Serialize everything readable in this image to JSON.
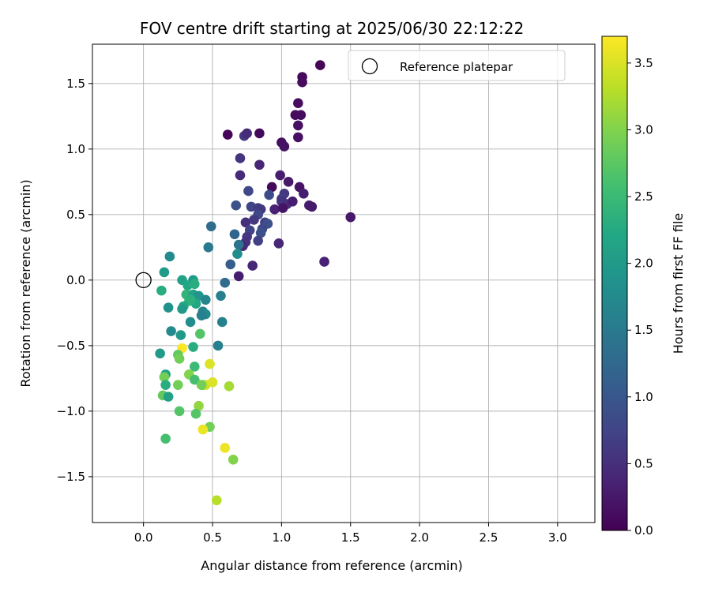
{
  "chart_data": {
    "type": "scatter",
    "title": "FOV centre drift starting at 2025/06/30 22:12:22",
    "xlabel": "Angular distance from reference (arcmin)",
    "ylabel": "Rotation from reference (arcmin)",
    "xlim": [
      -0.37,
      3.27
    ],
    "ylim": [
      -1.85,
      1.8
    ],
    "xticks": [
      0.0,
      0.5,
      1.0,
      1.5,
      2.0,
      2.5,
      3.0
    ],
    "yticks": [
      -1.5,
      -1.0,
      -0.5,
      0.0,
      0.5,
      1.0,
      1.5
    ],
    "grid": true,
    "legend": {
      "placement": "upper-right",
      "entries": [
        "Reference platepar"
      ]
    },
    "reference_point": {
      "label": "Reference platepar",
      "x": 0.0,
      "y": 0.0
    },
    "colorbar": {
      "label": "Hours from first FF file",
      "range": [
        0.0,
        3.7
      ],
      "ticks": [
        0.0,
        0.5,
        1.0,
        1.5,
        2.0,
        2.5,
        3.0,
        3.5
      ],
      "colormap": "viridis"
    },
    "points": [
      [
        1.28,
        1.64,
        0.05
      ],
      [
        1.15,
        1.55,
        0.1
      ],
      [
        1.15,
        1.51,
        0.12
      ],
      [
        1.12,
        1.35,
        0.12
      ],
      [
        1.1,
        1.26,
        0.1
      ],
      [
        1.14,
        1.26,
        0.12
      ],
      [
        1.12,
        1.18,
        0.15
      ],
      [
        1.12,
        1.09,
        0.15
      ],
      [
        0.61,
        1.11,
        0.05
      ],
      [
        0.73,
        1.1,
        0.6
      ],
      [
        0.75,
        1.12,
        0.45
      ],
      [
        0.84,
        1.12,
        0.08
      ],
      [
        1.0,
        1.05,
        0.15
      ],
      [
        1.02,
        1.02,
        0.18
      ],
      [
        0.7,
        0.93,
        0.55
      ],
      [
        0.84,
        0.88,
        0.4
      ],
      [
        0.7,
        0.8,
        0.45
      ],
      [
        0.99,
        0.8,
        0.3
      ],
      [
        1.05,
        0.75,
        0.25
      ],
      [
        1.13,
        0.71,
        0.2
      ],
      [
        0.93,
        0.71,
        0.08
      ],
      [
        0.76,
        0.68,
        0.8
      ],
      [
        1.02,
        0.66,
        0.6
      ],
      [
        0.91,
        0.65,
        0.85
      ],
      [
        1.16,
        0.66,
        0.3
      ],
      [
        1.0,
        0.62,
        0.65
      ],
      [
        1.0,
        0.6,
        0.55
      ],
      [
        1.04,
        0.58,
        0.5
      ],
      [
        1.08,
        0.6,
        0.3
      ],
      [
        1.2,
        0.57,
        0.3
      ],
      [
        1.22,
        0.56,
        0.25
      ],
      [
        0.67,
        0.57,
        0.9
      ],
      [
        0.78,
        0.56,
        0.75
      ],
      [
        0.83,
        0.55,
        0.65
      ],
      [
        0.85,
        0.54,
        0.6
      ],
      [
        0.95,
        0.54,
        0.35
      ],
      [
        1.01,
        0.55,
        0.2
      ],
      [
        0.83,
        0.5,
        0.8
      ],
      [
        1.5,
        0.48,
        0.25
      ],
      [
        0.74,
        0.44,
        0.5
      ],
      [
        0.8,
        0.46,
        0.6
      ],
      [
        0.88,
        0.44,
        0.7
      ],
      [
        0.9,
        0.43,
        0.9
      ],
      [
        0.86,
        0.39,
        0.8
      ],
      [
        0.85,
        0.36,
        0.9
      ],
      [
        0.77,
        0.38,
        0.75
      ],
      [
        0.49,
        0.41,
        1.3
      ],
      [
        0.66,
        0.35,
        1.2
      ],
      [
        0.75,
        0.33,
        0.6
      ],
      [
        0.74,
        0.29,
        0.55
      ],
      [
        0.83,
        0.3,
        0.7
      ],
      [
        0.98,
        0.28,
        0.4
      ],
      [
        0.72,
        0.26,
        0.45
      ],
      [
        0.69,
        0.27,
        1.4
      ],
      [
        0.47,
        0.25,
        1.5
      ],
      [
        0.68,
        0.2,
        1.8
      ],
      [
        0.63,
        0.12,
        1.1
      ],
      [
        0.79,
        0.11,
        0.4
      ],
      [
        1.31,
        0.14,
        0.35
      ],
      [
        0.69,
        0.03,
        0.3
      ],
      [
        0.19,
        0.18,
        1.75
      ],
      [
        0.15,
        0.06,
        2.0
      ],
      [
        0.28,
        0.0,
        2.1
      ],
      [
        0.36,
        0.0,
        2.0
      ],
      [
        0.59,
        -0.02,
        1.3
      ],
      [
        0.32,
        -0.04,
        2.2
      ],
      [
        0.37,
        -0.03,
        2.3
      ],
      [
        0.13,
        -0.08,
        2.3
      ],
      [
        0.31,
        -0.11,
        2.4
      ],
      [
        0.36,
        -0.11,
        2.1
      ],
      [
        0.4,
        -0.12,
        1.9
      ],
      [
        0.56,
        -0.12,
        1.6
      ],
      [
        0.45,
        -0.15,
        1.7
      ],
      [
        0.33,
        -0.16,
        2.5
      ],
      [
        0.38,
        -0.18,
        2.2
      ],
      [
        0.34,
        -0.15,
        2.35
      ],
      [
        0.29,
        -0.2,
        2.2
      ],
      [
        0.28,
        -0.22,
        2.0
      ],
      [
        0.18,
        -0.21,
        1.85
      ],
      [
        0.43,
        -0.24,
        1.65
      ],
      [
        0.45,
        -0.26,
        1.75
      ],
      [
        0.42,
        -0.27,
        1.6
      ],
      [
        0.34,
        -0.32,
        1.8
      ],
      [
        0.57,
        -0.32,
        1.6
      ],
      [
        0.2,
        -0.39,
        1.75
      ],
      [
        0.27,
        -0.42,
        2.0
      ],
      [
        0.41,
        -0.41,
        2.7
      ],
      [
        0.54,
        -0.5,
        1.6
      ],
      [
        0.36,
        -0.51,
        2.3
      ],
      [
        0.28,
        -0.52,
        3.7
      ],
      [
        0.12,
        -0.56,
        2.0
      ],
      [
        0.25,
        -0.57,
        2.8
      ],
      [
        0.26,
        -0.6,
        2.9
      ],
      [
        0.48,
        -0.64,
        3.5
      ],
      [
        0.37,
        -0.66,
        2.5
      ],
      [
        0.16,
        -0.72,
        2.1
      ],
      [
        0.33,
        -0.72,
        3.0
      ],
      [
        0.15,
        -0.74,
        2.9
      ],
      [
        0.37,
        -0.76,
        2.6
      ],
      [
        0.43,
        -0.8,
        2.7
      ],
      [
        0.45,
        -0.8,
        3.4
      ],
      [
        0.5,
        -0.78,
        3.5
      ],
      [
        0.25,
        -0.8,
        2.9
      ],
      [
        0.16,
        -0.8,
        2.3
      ],
      [
        0.62,
        -0.81,
        3.2
      ],
      [
        0.42,
        -0.8,
        2.9
      ],
      [
        0.14,
        -0.88,
        2.8
      ],
      [
        0.18,
        -0.89,
        2.1
      ],
      [
        0.4,
        -0.96,
        3.1
      ],
      [
        0.26,
        -1.0,
        2.7
      ],
      [
        0.38,
        -1.02,
        2.7
      ],
      [
        0.48,
        -1.12,
        2.9
      ],
      [
        0.43,
        -1.14,
        3.6
      ],
      [
        0.16,
        -1.21,
        2.6
      ],
      [
        0.59,
        -1.28,
        3.6
      ],
      [
        0.65,
        -1.37,
        3.0
      ],
      [
        0.53,
        -1.68,
        3.3
      ]
    ]
  }
}
